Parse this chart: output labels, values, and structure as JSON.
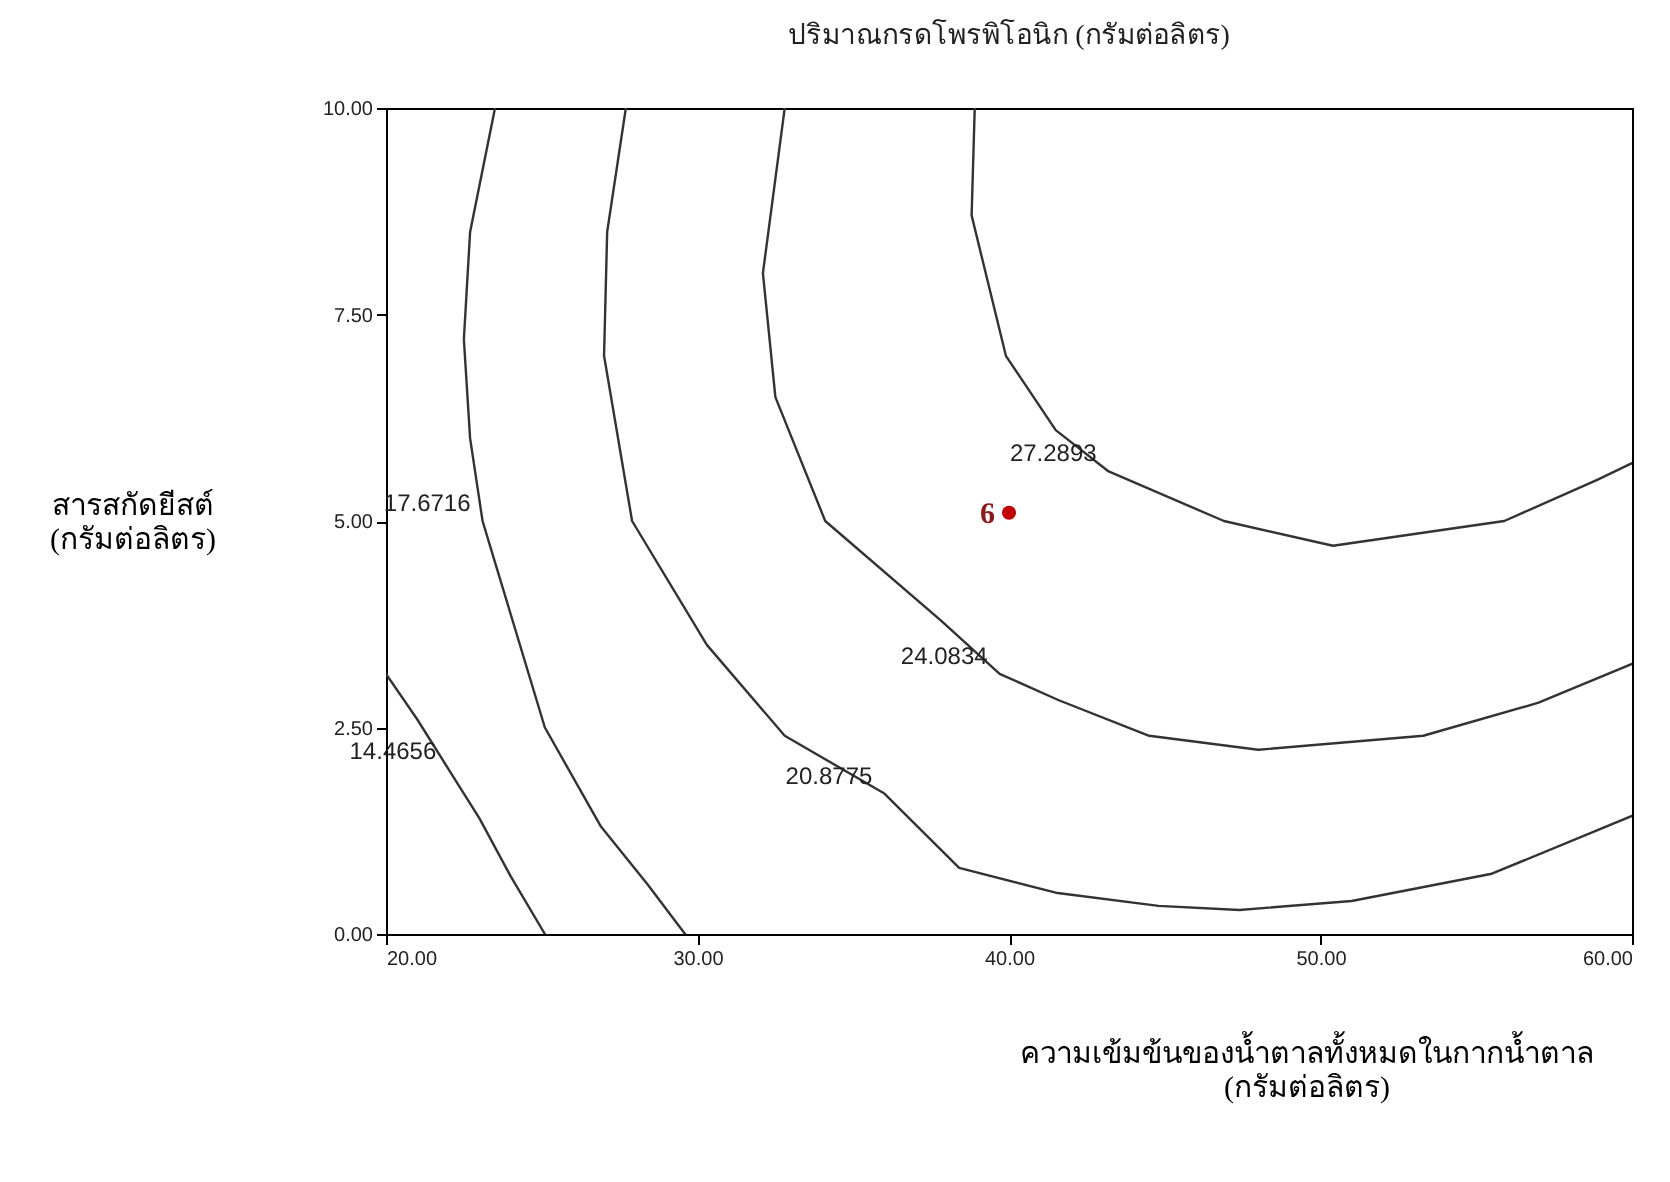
{
  "chart_data": {
    "type": "line",
    "title": "ปริมาณกรดโพรพิโอนิก (กรัมต่อลิตร)",
    "xlabel": "ความเข้มข้นของน้ำตาลทั้งหมดในกากน้ำตาล (กรัมต่อลิตร)",
    "ylabel": "สารสกัดยีสต์ (กรัมต่อลิตร)",
    "xlim": [
      20,
      60
    ],
    "ylim": [
      0,
      10
    ],
    "xticks": [
      {
        "value": 20,
        "label": "20.00"
      },
      {
        "value": 30,
        "label": "30.00"
      },
      {
        "value": 40,
        "label": "40.00"
      },
      {
        "value": 50,
        "label": "50.00"
      },
      {
        "value": 60,
        "label": "60.00"
      }
    ],
    "yticks": [
      {
        "value": 0,
        "label": "0.00"
      },
      {
        "value": 2.5,
        "label": "2.50"
      },
      {
        "value": 5,
        "label": "5.00"
      },
      {
        "value": 7.5,
        "label": "7.50"
      },
      {
        "value": 10,
        "label": "10.00"
      }
    ],
    "series": [
      {
        "name": "14.4656",
        "color": "#333333",
        "x": [
          20,
          21,
          22,
          23,
          24,
          25.1
        ],
        "values": [
          3.15,
          2.6,
          2.0,
          1.4,
          0.7,
          0
        ]
      },
      {
        "name": "17.6716",
        "color": "#333333",
        "x": [
          23.5,
          22.7,
          22.5,
          22.7,
          23.1,
          23.5,
          25.1,
          26.9,
          28.4,
          29.6
        ],
        "values": [
          10,
          8.5,
          7.2,
          6,
          5,
          4.5,
          2.5,
          1.3,
          0.6,
          0
        ]
      },
      {
        "name": "20.8775",
        "color": "#333333",
        "x": [
          27.7,
          27.1,
          27.0,
          27.9,
          30.3,
          32.8,
          36.0,
          38.4,
          41.5,
          44.8,
          47.4,
          51,
          55.5,
          60
        ],
        "values": [
          10,
          8.5,
          7.0,
          5.0,
          3.5,
          2.4,
          1.7,
          0.8,
          0.5,
          0.34,
          0.29,
          0.4,
          0.73,
          1.43
        ]
      },
      {
        "name": "24.0834",
        "color": "#333333",
        "x": [
          32.8,
          32.1,
          32.5,
          34.1,
          37.8,
          39.7,
          41.6,
          44.5,
          48,
          53.3,
          57,
          60
        ],
        "values": [
          10,
          8,
          6.5,
          5,
          3.8,
          3.15,
          2.83,
          2.4,
          2.23,
          2.4,
          2.8,
          3.27
        ]
      },
      {
        "name": "27.2893",
        "color": "#333333",
        "x": [
          38.9,
          38.8,
          39.9,
          41.5,
          43.2,
          46.9,
          50.4,
          55.9,
          58.9,
          60
        ],
        "values": [
          10,
          8.7,
          7,
          6.1,
          5.6,
          5.0,
          4.7,
          5.0,
          5.5,
          5.7
        ]
      },
      {
        "type": "scatter",
        "color": "#c00000",
        "marker": "circle",
        "x": [
          40
        ],
        "values": [
          5.1
        ]
      }
    ],
    "annotations": [
      {
        "text": "6",
        "x": 40,
        "y": 5.1
      }
    ]
  }
}
